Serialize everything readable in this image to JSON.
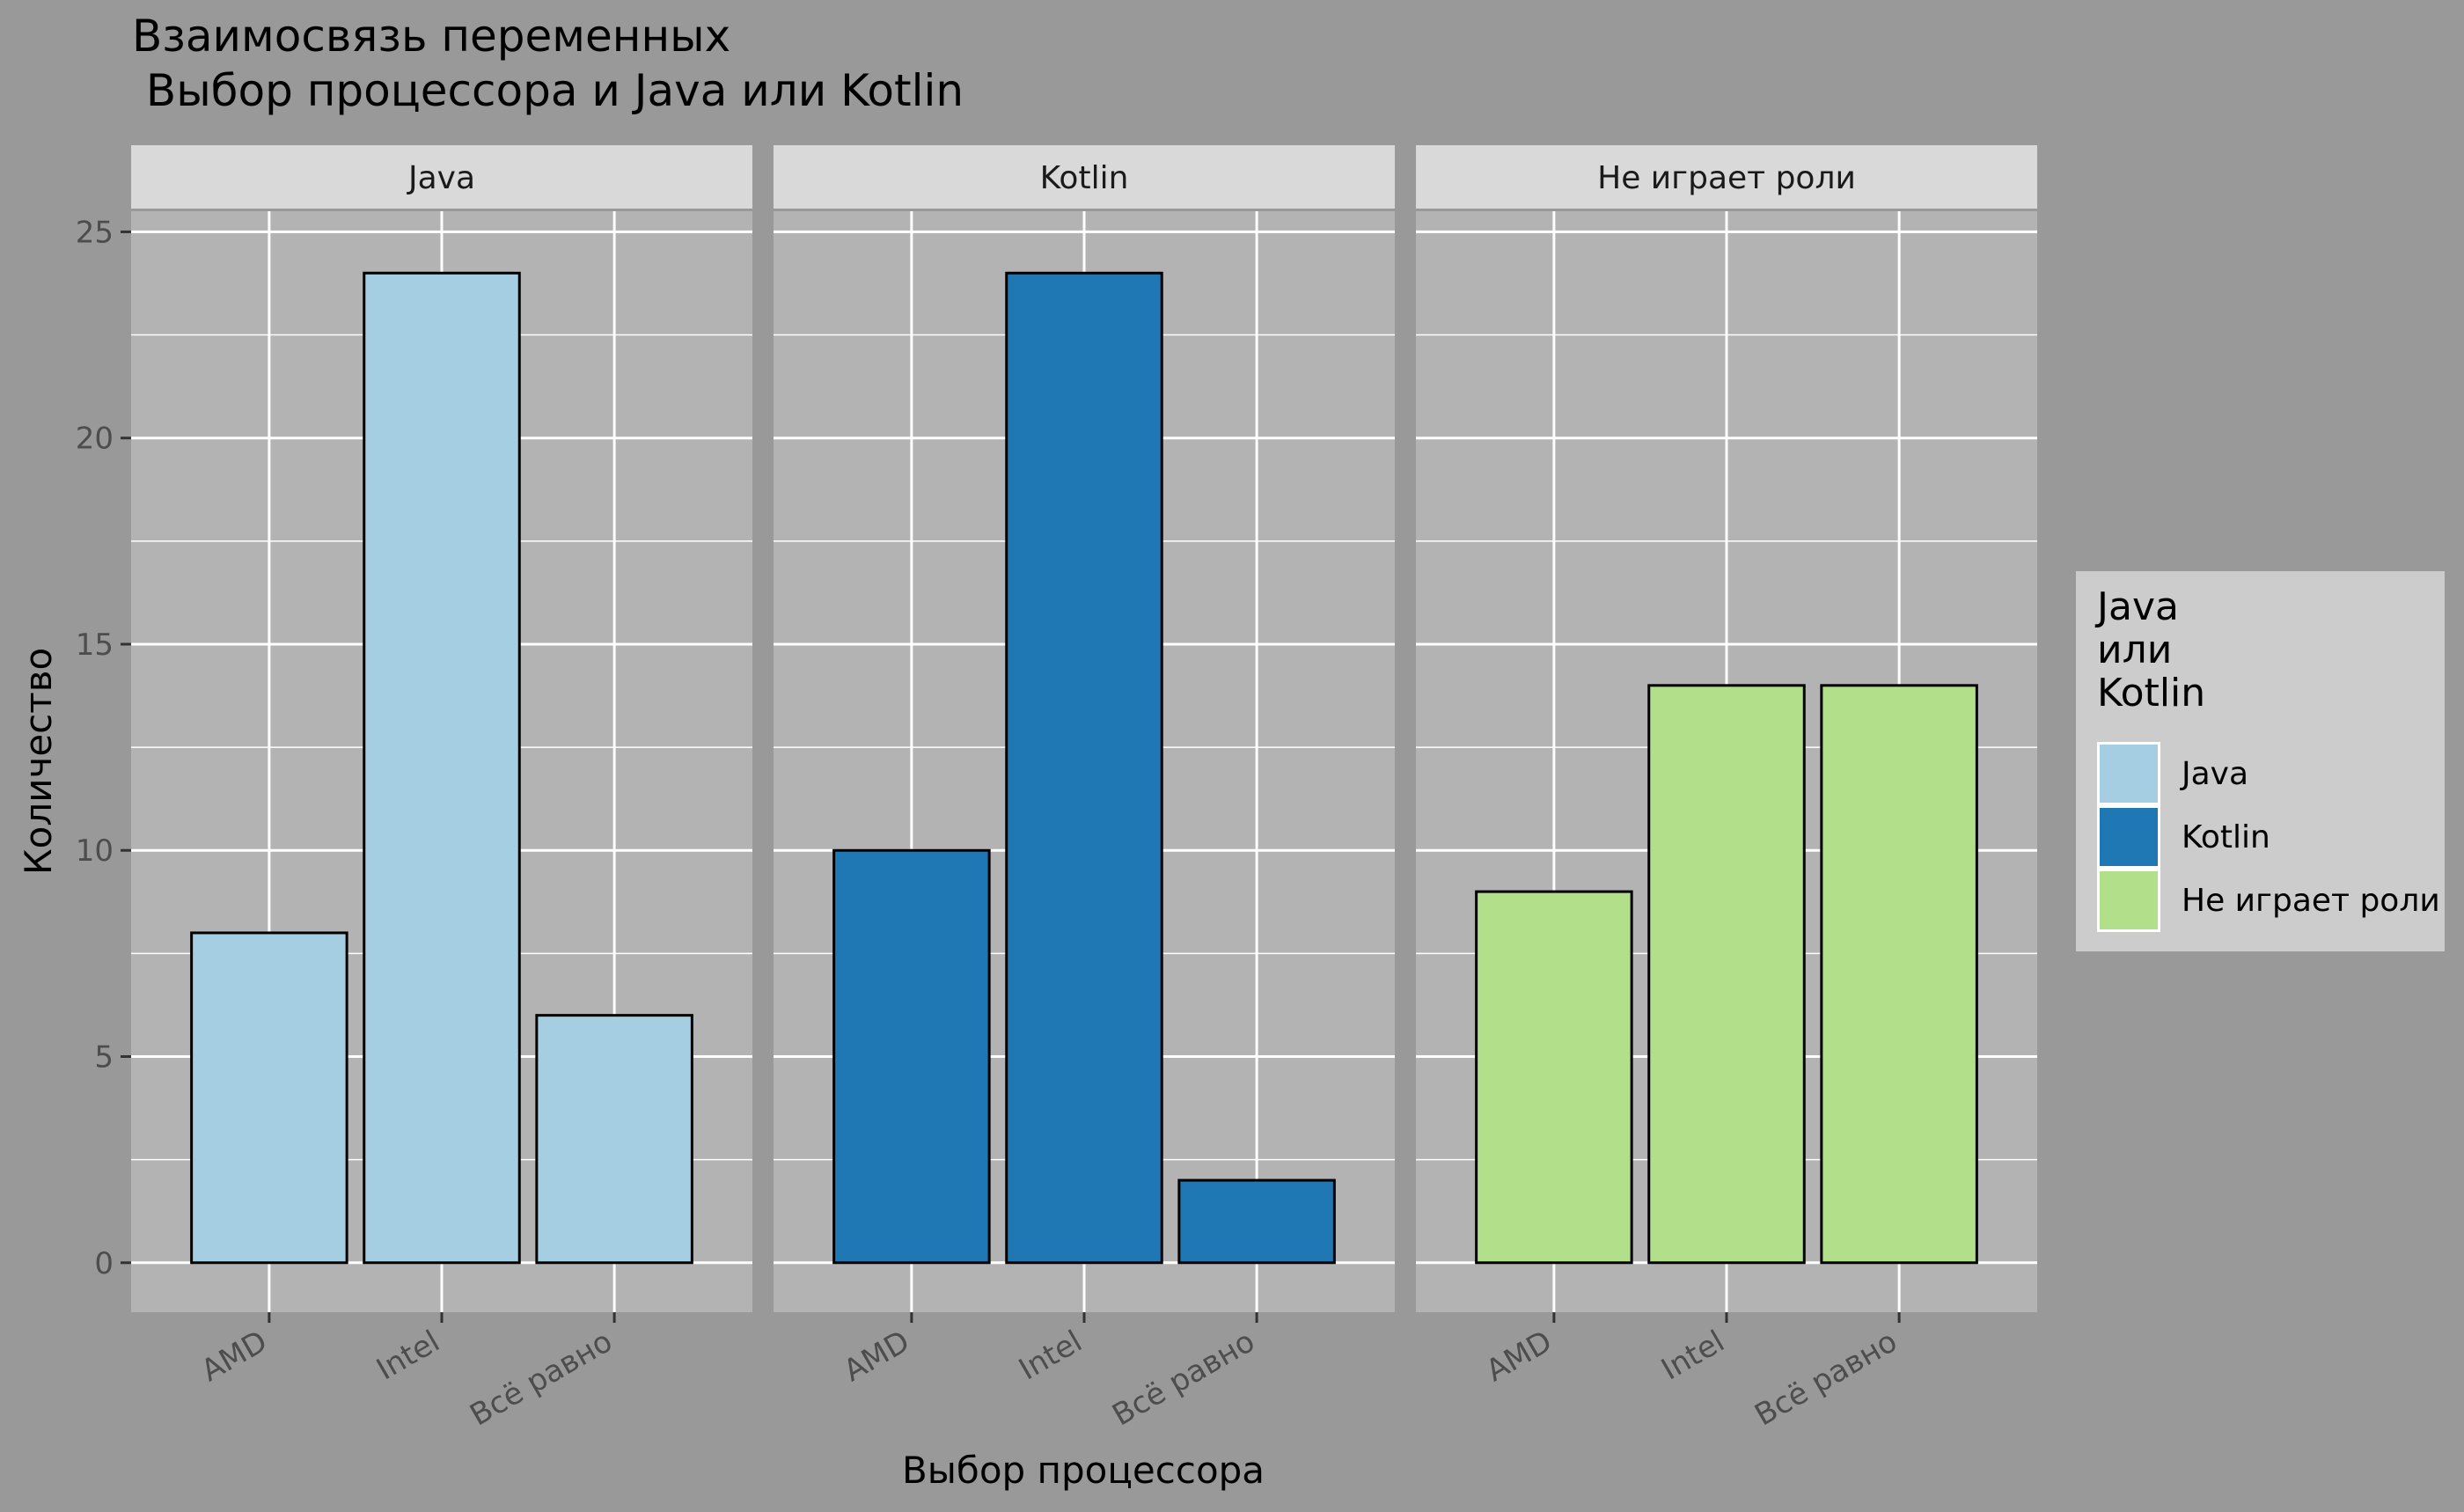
{
  "chart_data": {
    "type": "bar",
    "title_line1": "Взаимосвязь переменных",
    "title_line2": " Выбор процессора и Java или Kotlin",
    "xlabel": "Выбор процессора",
    "ylabel": "Количество",
    "ylim": [
      -1.2,
      25.5
    ],
    "yticks": [
      "0",
      "5",
      "10",
      "15",
      "20",
      "25"
    ],
    "categories": [
      "AMD",
      "Intel",
      "Всё равно"
    ],
    "grid": true,
    "legend_position": "right",
    "legend": {
      "title": [
        "Java",
        "или",
        "Kotlin"
      ],
      "items": [
        "Java",
        "Kotlin",
        "Не играет роли"
      ]
    },
    "series": [
      {
        "name": "Java",
        "color": "#A6CEE3",
        "values": [
          8,
          24,
          6
        ]
      },
      {
        "name": "Kotlin",
        "color": "#1F78B4",
        "values": [
          10,
          24,
          2
        ]
      },
      {
        "name": "Не играет роли",
        "color": "#B2DF8A",
        "values": [
          9,
          14,
          14
        ]
      }
    ]
  },
  "colors": {
    "background": "#999999",
    "panel": "#B3B3B3",
    "strip": "#D9D9D9",
    "legend_bg": "#CCCCCC",
    "grid": "#FFFFFF"
  }
}
